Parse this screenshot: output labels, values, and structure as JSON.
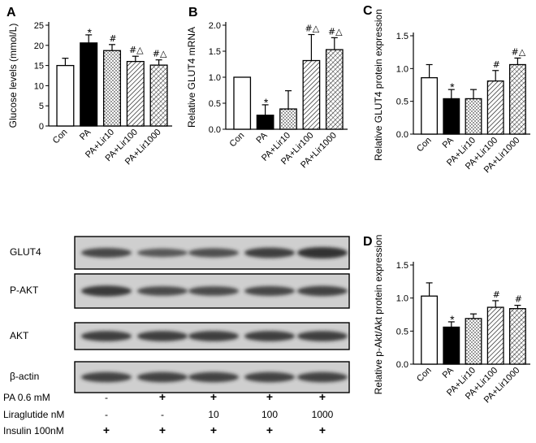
{
  "colors": {
    "pa": "#000000",
    "con": "#ffffff",
    "stroke": "#000000",
    "band": "#2a2a2a",
    "blot_bg": "#cfcfcf"
  },
  "chart_data": [
    {
      "panel": "A",
      "type": "bar",
      "categories": [
        "Con",
        "PA",
        "PA+Lir10",
        "PA+Lir100",
        "PA+Lir1000"
      ],
      "values": [
        15.0,
        20.6,
        18.7,
        16.0,
        15.1
      ],
      "errors": [
        1.8,
        2.0,
        1.5,
        1.3,
        1.3
      ],
      "annotations": [
        "",
        "*",
        "#",
        "#△",
        "#△"
      ],
      "ylabel": "Glucose levels (mmol/L)",
      "ylim": [
        0,
        25
      ],
      "yticks": [
        0,
        5,
        10,
        15,
        20,
        25
      ],
      "fills": [
        "white",
        "black",
        "dots",
        "hatch",
        "crosshatch"
      ]
    },
    {
      "panel": "B",
      "type": "bar",
      "categories": [
        "Con",
        "PA",
        "PA+Lir10",
        "PA+Lir100",
        "PA+Lir1000"
      ],
      "values": [
        1.0,
        0.27,
        0.39,
        1.32,
        1.53
      ],
      "errors": [
        0.0,
        0.2,
        0.35,
        0.5,
        0.23
      ],
      "annotations": [
        "",
        "*",
        "",
        "#△",
        "#△"
      ],
      "ylabel": "Relative GLUT4 mRNA",
      "ylim": [
        0,
        2.0
      ],
      "yticks": [
        0.0,
        0.5,
        1.0,
        1.5,
        2.0
      ],
      "fills": [
        "white",
        "black",
        "dots",
        "hatch",
        "crosshatch"
      ]
    },
    {
      "panel": "C",
      "type": "bar",
      "categories": [
        "Con",
        "PA",
        "PA+Lir10",
        "PA+Lir100",
        "PA+Lir1000"
      ],
      "values": [
        0.86,
        0.54,
        0.54,
        0.81,
        1.06
      ],
      "errors": [
        0.2,
        0.14,
        0.14,
        0.16,
        0.1
      ],
      "annotations": [
        "",
        "*",
        "",
        "#",
        "#△"
      ],
      "ylabel": "Relative GLUT4 protein expression",
      "ylim": [
        0,
        1.5
      ],
      "yticks": [
        0.0,
        0.5,
        1.0,
        1.5
      ],
      "fills": [
        "white",
        "black",
        "dots",
        "hatch",
        "crosshatch"
      ]
    },
    {
      "panel": "D",
      "type": "bar",
      "categories": [
        "Con",
        "PA",
        "PA+Lir10",
        "PA+Lir100",
        "PA+Lir1000"
      ],
      "values": [
        1.03,
        0.56,
        0.69,
        0.86,
        0.84
      ],
      "errors": [
        0.2,
        0.08,
        0.07,
        0.1,
        0.05
      ],
      "annotations": [
        "",
        "*",
        "",
        "#",
        "#"
      ],
      "ylabel": "Relative p-Akt/Akt protein expression",
      "ylim": [
        0,
        1.5
      ],
      "yticks": [
        0.0,
        0.5,
        1.0,
        1.5
      ],
      "fills": [
        "white",
        "black",
        "dots",
        "hatch",
        "crosshatch"
      ]
    }
  ],
  "western": {
    "rows": [
      {
        "label": "GLUT4",
        "intensity": [
          0.75,
          0.55,
          0.65,
          0.85,
          1.0
        ]
      },
      {
        "label": "P-AKT",
        "intensity": [
          0.9,
          0.7,
          0.7,
          0.75,
          0.8
        ]
      },
      {
        "label": "AKT",
        "intensity": [
          0.85,
          0.85,
          0.85,
          0.85,
          0.85
        ]
      },
      {
        "label": "β-actin",
        "intensity": [
          0.8,
          0.8,
          0.8,
          0.8,
          0.8
        ]
      }
    ],
    "treatments": [
      {
        "label": "PA 0.6 mM",
        "values": [
          "-",
          "+",
          "+",
          "+",
          "+"
        ]
      },
      {
        "label": "Liraglutide nM",
        "values": [
          "-",
          "-",
          "10",
          "100",
          "1000"
        ]
      },
      {
        "label": "Insulin 100nM",
        "values": [
          "+",
          "+",
          "+",
          "+",
          "+"
        ]
      }
    ]
  }
}
